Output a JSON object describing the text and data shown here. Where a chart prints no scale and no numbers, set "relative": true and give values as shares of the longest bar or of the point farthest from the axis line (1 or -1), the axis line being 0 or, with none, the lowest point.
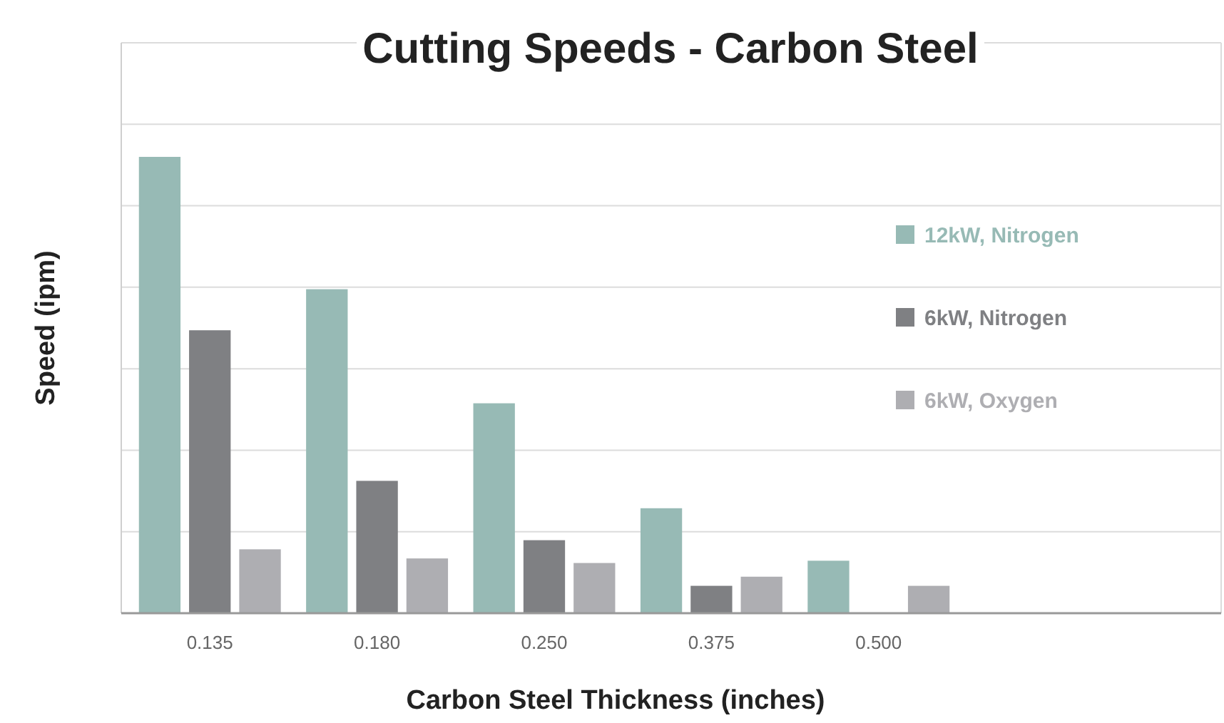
{
  "chart_data": {
    "type": "bar",
    "title": "Cutting Speeds - Carbon Steel",
    "xlabel": "Carbon Steel Thickness (inches)",
    "ylabel": "Speed (ipm)",
    "relative": true,
    "grid": true,
    "legend": "right",
    "categories": [
      "0.135",
      "0.180",
      "0.250",
      "0.375",
      "0.500"
    ],
    "series": [
      {
        "name": "12kW, Nitrogen",
        "color": "#97bab5",
        "values": [
          1,
          0.71,
          0.46,
          0.23,
          0.115
        ]
      },
      {
        "name": "6kW, Nitrogen",
        "color": "#7f8083",
        "values": [
          0.62,
          0.29,
          0.16,
          0.06,
          null
        ]
      },
      {
        "name": "6kW, Oxygen",
        "color": "#aeaeb2",
        "values": [
          0.14,
          0.12,
          0.11,
          0.08,
          0.06
        ]
      }
    ]
  }
}
